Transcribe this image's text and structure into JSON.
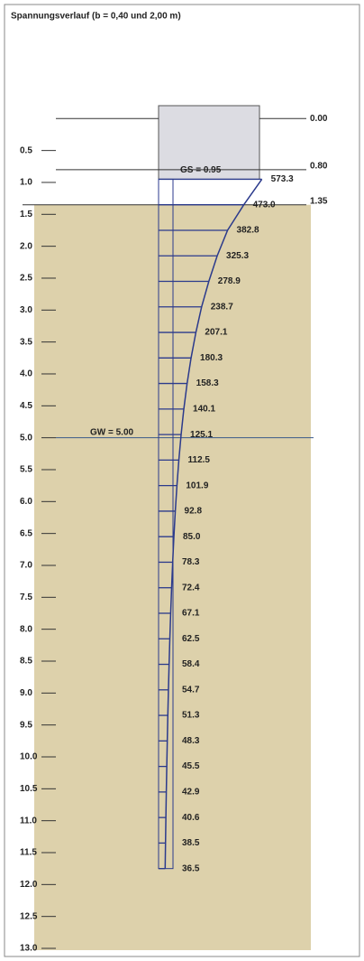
{
  "chart_data": {
    "type": "bar",
    "orientation": "horizontal",
    "title": "Spannungsverlauf (b = 0,40 und 2,00 m)",
    "ylim": [
      0,
      13
    ],
    "yticks": [
      0.5,
      {
        "value": 1,
        "label": "1.0"
      },
      1.5,
      {
        "value": 2,
        "label": "2.0"
      },
      2.5,
      {
        "value": 3,
        "label": "3.0"
      },
      3.5,
      {
        "value": 4,
        "label": "4.0"
      },
      4.5,
      {
        "value": 5,
        "label": "5.0"
      },
      5.5,
      {
        "value": 6,
        "label": "6.0"
      },
      6.5,
      {
        "value": 7,
        "label": "7.0"
      },
      7.5,
      {
        "value": 8,
        "label": "8.0"
      },
      8.5,
      {
        "value": 9,
        "label": "9.0"
      },
      9.5,
      {
        "value": 10,
        "label": "10.0"
      },
      10.5,
      {
        "value": 11,
        "label": "11.0"
      },
      11.5,
      {
        "value": 12,
        "label": "12.0"
      },
      12.5,
      {
        "value": 13,
        "label": "13.0"
      }
    ],
    "y": [
      0.95,
      1.35,
      1.75,
      2.15,
      2.55,
      2.95,
      3.35,
      3.75,
      4.15,
      4.55,
      4.95,
      5.35,
      5.75,
      6.15,
      6.55,
      6.95,
      7.35,
      7.75,
      8.15,
      8.55,
      8.95,
      9.35,
      9.75,
      10.15,
      10.55,
      10.95,
      11.35,
      11.75
    ],
    "values": [
      573.3,
      473.0,
      382.8,
      325.3,
      278.9,
      238.7,
      207.1,
      180.3,
      158.3,
      140.1,
      125.1,
      112.5,
      101.9,
      92.8,
      85.0,
      78.3,
      72.4,
      67.1,
      62.5,
      58.4,
      54.7,
      51.3,
      48.3,
      45.5,
      42.9,
      40.6,
      38.5,
      36.5
    ],
    "value_labels": [
      "573.3",
      "473.0",
      "382.8",
      "325.3",
      "278.9",
      "238.7",
      "207.1",
      "180.3",
      "158.3",
      "140.1",
      "125.1",
      "112.5",
      "101.9",
      "92.8",
      "85.0",
      "78.3",
      "72.4",
      "67.1",
      "62.5",
      "58.4",
      "54.7",
      "51.3",
      "48.3",
      "45.5",
      "42.9",
      "40.6",
      "38.5",
      "36.5"
    ],
    "color": "#2b3a8c",
    "levels": [
      {
        "label": "0.00",
        "value": 0
      },
      {
        "label": "0.80",
        "value": 0.8
      },
      {
        "label": "1.35",
        "value": 1.35
      }
    ],
    "foundation_base": {
      "label": "GS = 0.95",
      "value": 0.95
    },
    "groundwater": {
      "label": "GW = 5.00",
      "value": 5
    }
  }
}
